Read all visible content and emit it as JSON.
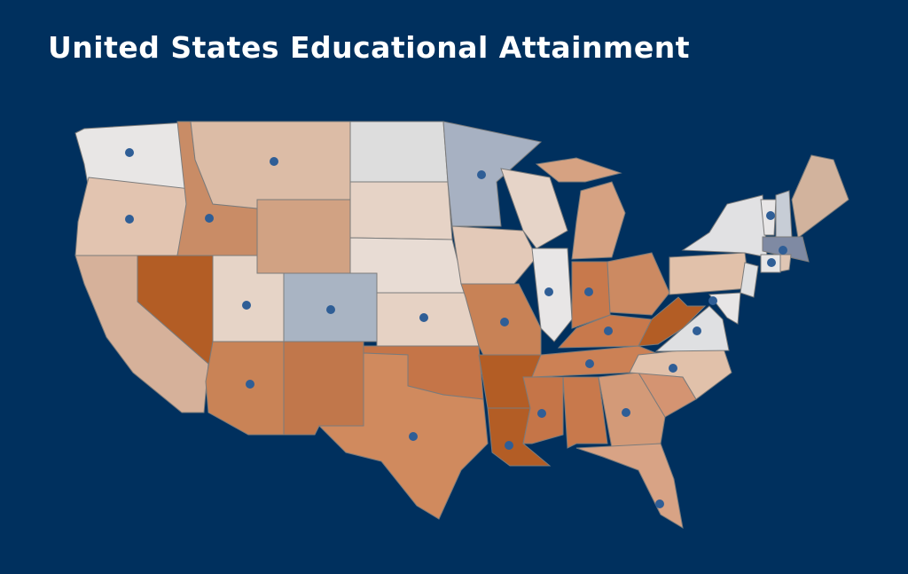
{
  "title": "United States Educational Attainment"
}
